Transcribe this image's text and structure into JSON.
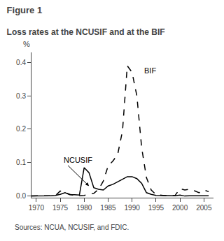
{
  "chart_data": {
    "type": "line",
    "title": "Figure 1",
    "subtitle": "Loss rates at the NCUSIF and at the BIF",
    "ylabel": "%",
    "source": "Sources: NCUA, NCUSIF, and FDIC.",
    "x": [
      1969,
      1970,
      1971,
      1972,
      1973,
      1974,
      1975,
      1976,
      1977,
      1978,
      1979,
      1980,
      1981,
      1982,
      1983,
      1984,
      1985,
      1986,
      1987,
      1988,
      1989,
      1990,
      1991,
      1992,
      1993,
      1994,
      1995,
      1996,
      1997,
      1998,
      1999,
      2000,
      2001,
      2002,
      2003,
      2004,
      2005,
      2006
    ],
    "series": [
      {
        "name": "NCUSIF",
        "color": "#000000",
        "line_style": "solid",
        "values": [
          0.0,
          0.0,
          0.001,
          0.001,
          0.001,
          0.002,
          0.005,
          0.01,
          0.004,
          0.004,
          0.003,
          0.085,
          0.07,
          0.025,
          0.02,
          0.018,
          0.03,
          0.035,
          0.042,
          0.05,
          0.058,
          0.058,
          0.052,
          0.038,
          0.01,
          0.005,
          0.002,
          0.002,
          0.002,
          0.001,
          0.001,
          0.003,
          0.0,
          0.001,
          0.001,
          0.002,
          0.002,
          0.001
        ]
      },
      {
        "name": "BIF",
        "color": "#000000",
        "line_style": "dashed",
        "values": [
          0.0,
          0.001,
          0.001,
          0.001,
          0.001,
          0.001,
          0.015,
          0.01,
          0.005,
          0.002,
          0.001,
          0.002,
          0.005,
          0.008,
          0.02,
          0.045,
          0.09,
          0.105,
          0.125,
          0.195,
          0.39,
          0.37,
          0.3,
          0.145,
          0.055,
          0.018,
          0.004,
          0.002,
          0.001,
          0.001,
          0.002,
          0.022,
          0.018,
          0.02,
          0.016,
          0.01,
          0.018,
          0.013
        ]
      }
    ],
    "annotations": [
      {
        "text": "NCUSIF",
        "x": 1975.5,
        "y": 0.107,
        "arrow_to": [
          1981,
          0.03
        ]
      },
      {
        "text": "BIF",
        "x": 1992.2,
        "y": 0.375
      }
    ],
    "xlim": [
      1969,
      2007
    ],
    "xticks": [
      1970,
      1975,
      1980,
      1985,
      1990,
      1995,
      2000,
      2005
    ],
    "ylim": [
      -0.005,
      0.43
    ],
    "yticks": [
      {
        "value": 0.0,
        "label": "0.0"
      },
      0.1,
      0.2,
      0.3,
      0.4
    ],
    "grid": false
  }
}
